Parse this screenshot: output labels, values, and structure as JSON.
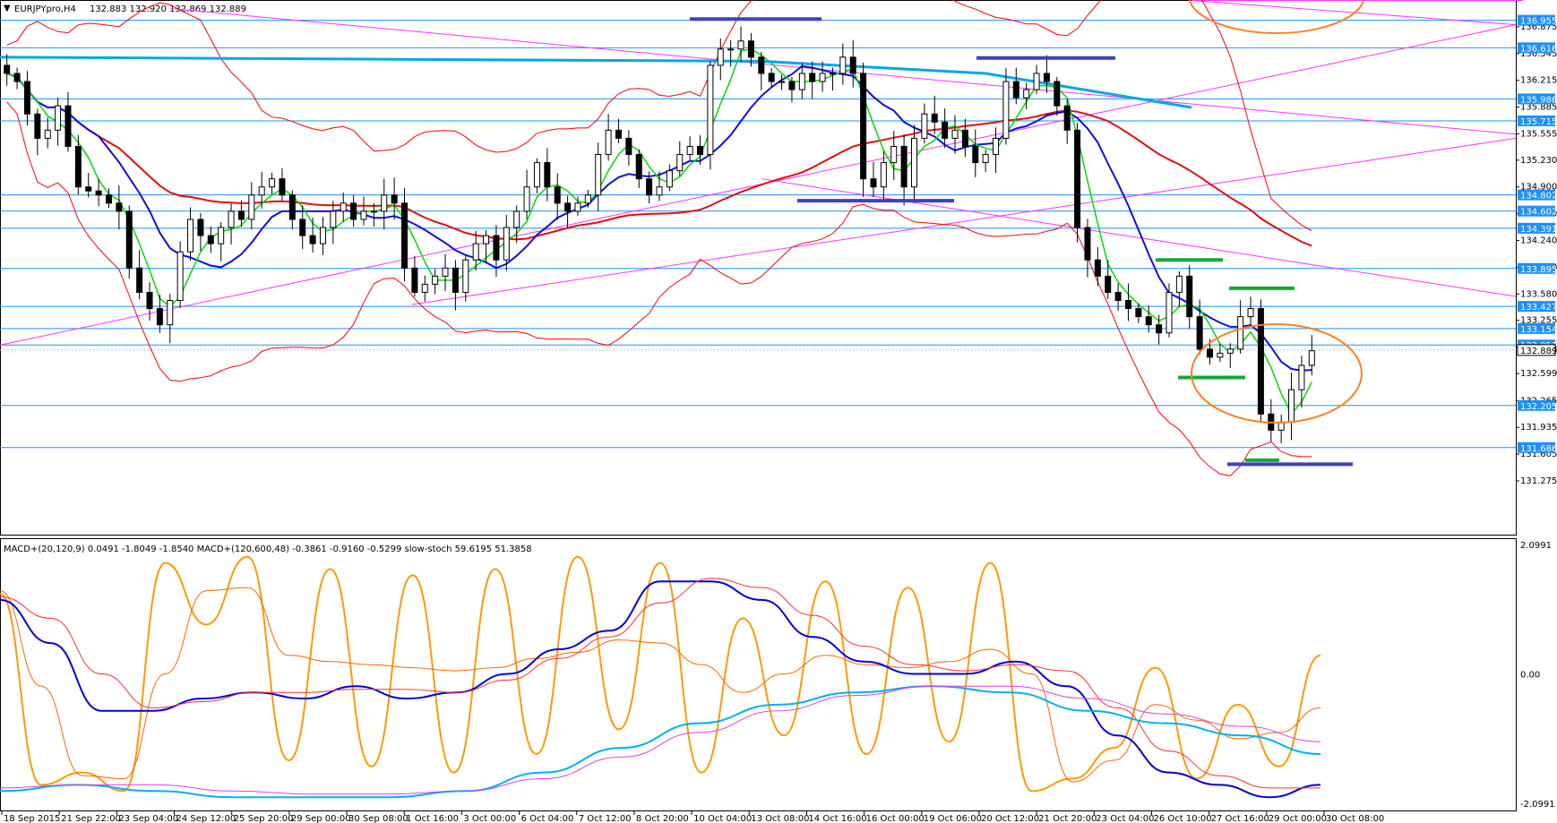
{
  "header": {
    "symbol_label": "EURJPYpro,H4",
    "ohlc": "132.883 132.920 132.869 132.889"
  },
  "indicator_header": "MACD+(20,120,9) 0.0491 -1.8049 -1.8540   MACD+(120,600,48) -0.3861 -0.9160 -0.5299   slow-stoch 59.6195 51.3858",
  "colors": {
    "background": "#ffffff",
    "bull_candle": "#ffffff",
    "bear_candle": "#000000",
    "hline": "#1e90ff",
    "label_bg": "#1e90ff",
    "label_text": "#ffffff",
    "price_line_grey": "#c0c0c0",
    "ma_fast": "#00dd00",
    "ma_mid": "#1010dd",
    "ma_slow": "#dd1010",
    "ma_long": "#00a8e8",
    "bollinger": "#ff0000",
    "trendline": "#ff33ff",
    "level_marker_blue": "#4040c0",
    "level_marker_green": "#11aa33",
    "circle": "#ff8020",
    "stoch_main": "#ff9900",
    "stoch_signal": "#ff6600",
    "macd_fast": "#0000dd",
    "macd_fast_signal": "#ff3030",
    "macd_slow": "#00b0f0",
    "macd_slow_signal": "#e040e0"
  },
  "chart_data": [
    {
      "type": "candlestick",
      "title": "EURJPYpro,H4",
      "ylim": [
        131.275,
        137.15
      ],
      "y_ticks": [
        "136.875",
        "136.545",
        "136.215",
        "135.885",
        "135.555",
        "135.230",
        "134.900",
        "134.570",
        "134.240",
        "133.910",
        "133.580",
        "133.255",
        "132.925",
        "132.599",
        "132.265",
        "131.935",
        "131.605",
        "131.275"
      ],
      "horizontal_levels": [
        "136.955",
        "136.616",
        "135.986",
        "135.715",
        "134.802",
        "134.602",
        "134.391",
        "133.895",
        "133.427",
        "133.154",
        "132.951",
        "132.205",
        "131.686"
      ],
      "current_price": "132.889",
      "x_ticks": [
        "18 Sep 2015",
        "21 Sep 22:00",
        "23 Sep 04:00",
        "24 Sep 12:00",
        "25 Sep 20:00",
        "29 Sep 00:00",
        "30 Sep 08:00",
        "1 Oct 16:00",
        "3 Oct 00:00",
        "6 Oct 04:00",
        "7 Oct 12:00",
        "8 Oct 20:00",
        "10 Oct 04:00",
        "13 Oct 08:00",
        "14 Oct 16:00",
        "16 Oct 00:00",
        "19 Oct 06:00",
        "20 Oct 12:00",
        "21 Oct 20:00",
        "23 Oct 04:00",
        "26 Oct 10:00",
        "27 Oct 16:00",
        "29 Oct 00:00",
        "30 Oct 08:00"
      ],
      "candles_close": [
        136.3,
        136.2,
        135.8,
        135.5,
        135.6,
        135.9,
        135.4,
        134.9,
        134.85,
        134.8,
        134.7,
        134.6,
        133.9,
        133.6,
        133.4,
        133.2,
        133.5,
        134.1,
        134.5,
        134.3,
        134.2,
        134.4,
        134.6,
        134.5,
        134.8,
        134.9,
        135.0,
        134.8,
        134.5,
        134.3,
        134.2,
        134.4,
        134.6,
        134.7,
        134.5,
        134.6,
        134.6,
        134.8,
        134.7,
        133.9,
        133.6,
        133.7,
        133.8,
        133.9,
        133.6,
        134.0,
        134.2,
        134.3,
        134.0,
        134.4,
        134.6,
        134.9,
        135.2,
        134.9,
        134.7,
        134.6,
        134.7,
        134.8,
        135.3,
        135.6,
        135.5,
        135.3,
        135.0,
        134.8,
        134.9,
        135.1,
        135.3,
        135.4,
        135.3,
        136.4,
        136.6,
        136.6,
        136.7,
        136.5,
        136.3,
        136.2,
        136.2,
        136.1,
        136.3,
        136.2,
        136.3,
        136.3,
        136.5,
        136.3,
        135.0,
        134.9,
        135.2,
        135.4,
        134.9,
        135.5,
        135.8,
        135.7,
        135.5,
        135.6,
        135.4,
        135.2,
        135.3,
        135.5,
        136.2,
        136.0,
        136.1,
        136.3,
        136.2,
        135.9,
        135.6,
        134.4,
        134.0,
        133.8,
        133.6,
        133.5,
        133.4,
        133.3,
        133.2,
        133.1,
        133.6,
        133.8,
        133.3,
        132.9,
        132.8,
        132.85,
        132.9,
        133.3,
        133.4,
        132.1,
        131.9,
        132.0,
        132.4,
        132.7,
        132.88
      ]
    },
    {
      "type": "line",
      "title": "MACD+ / slow-stoch",
      "ylim": [
        -2.0991,
        2.0991
      ],
      "y_ticks": [
        "2.0991",
        "0.00",
        "-2.0991"
      ],
      "series": [
        {
          "name": "slow-stoch",
          "values": [
            1.3,
            -1.8,
            -1.6,
            -1.9,
            1.8,
            0.8,
            1.9,
            -1.4,
            1.7,
            -1.5,
            1.6,
            -1.6,
            1.7,
            -1.3,
            1.9,
            -0.9,
            1.8,
            -1.6,
            0.9,
            -1.0,
            1.5,
            -1.3,
            1.4,
            -1.1,
            1.8,
            -1.9,
            -1.7,
            -1.2,
            0.1,
            -1.7,
            -0.5,
            -1.5,
            0.3
          ]
        },
        {
          "name": "MACD+(20,120,9)",
          "values": [
            1.2,
            0.5,
            -0.6,
            -0.6,
            -0.4,
            -0.3,
            -0.4,
            -0.2,
            -0.4,
            -0.3,
            0.0,
            0.4,
            0.7,
            1.5,
            1.5,
            1.2,
            0.6,
            0.2,
            0.0,
            0.0,
            0.2,
            -0.2,
            -1.0,
            -1.6,
            -1.8,
            -2.0,
            -1.8
          ]
        },
        {
          "name": "MACD+(120,600,48)",
          "values": [
            -1.9,
            -1.8,
            -1.9,
            -2.0,
            -2.0,
            -2.0,
            -1.9,
            -1.6,
            -1.2,
            -0.8,
            -0.5,
            -0.3,
            -0.2,
            -0.3,
            -0.6,
            -0.8,
            -1.0,
            -1.3
          ]
        }
      ]
    }
  ]
}
